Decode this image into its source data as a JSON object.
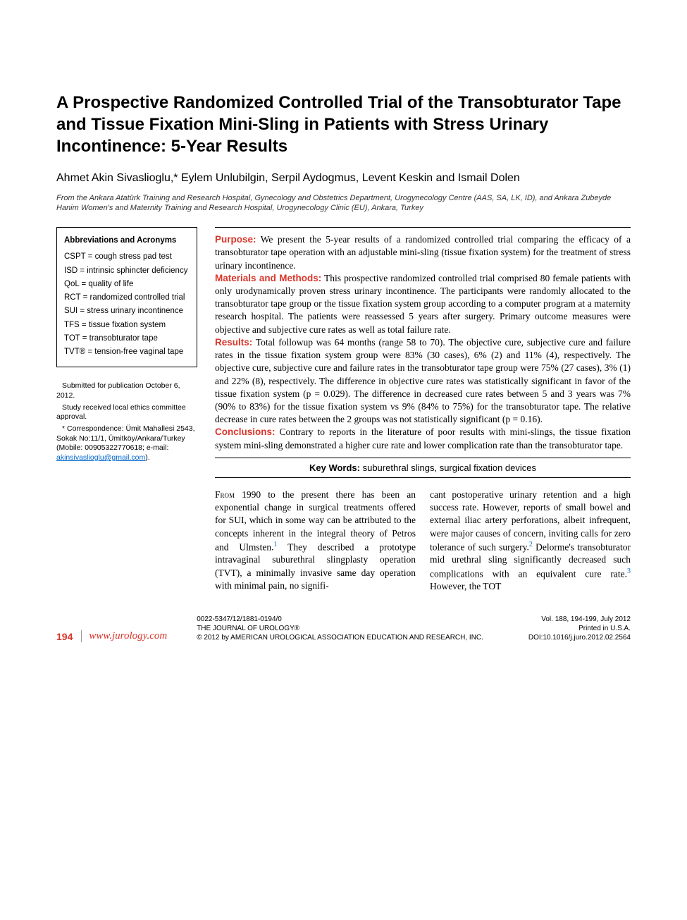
{
  "title": "A Prospective Randomized Controlled Trial of the Transobturator Tape and Tissue Fixation Mini-Sling in Patients with Stress Urinary Incontinence: 5-Year Results",
  "authors": "Ahmet Akin Sivaslioglu,* Eylem Unlubilgin, Serpil Aydogmus, Levent Keskin and Ismail Dolen",
  "affiliation": "From the Ankara Atatürk Training and Research Hospital, Gynecology and Obstetrics Department, Urogynecology Centre (AAS, SA, LK, ID), and Ankara Zubeyde Hanim Women's and Maternity Training and Research Hospital, Urogynecology Clinic (EU), Ankara, Turkey",
  "abbreviations": {
    "heading": "Abbreviations and Acronyms",
    "items": [
      "CSPT = cough stress pad test",
      "ISD = intrinsic sphincter deficiency",
      "QoL = quality of life",
      "RCT = randomized controlled trial",
      "SUI = stress urinary incontinence",
      "TFS = tissue fixation system",
      "TOT = transobturator tape",
      "TVT® = tension-free vaginal tape"
    ]
  },
  "footnotes": {
    "submitted": "Submitted for publication October 6, 2012.",
    "ethics": "Study received local ethics committee approval.",
    "correspondence": "* Correspondence: Ümit Mahallesi 2543, Sokak No:11/1, Ümitköy/Ankara/Turkey (Mobile: 00905322770618; e-mail: ",
    "email": "akinsivaslioglu@gmail.com",
    "close": ")."
  },
  "abstract": {
    "purpose_label": "Purpose:",
    "purpose": " We present the 5-year results of a randomized controlled trial comparing the efficacy of a transobturator tape operation with an adjustable mini-sling (tissue fixation system) for the treatment of stress urinary incontinence.",
    "methods_label": "Materials and Methods:",
    "methods": " This prospective randomized controlled trial comprised 80 female patients with only urodynamically proven stress urinary incontinence. The participants were randomly allocated to the transobturator tape group or the tissue fixation system group according to a computer program at a maternity research hospital. The patients were reassessed 5 years after surgery. Primary outcome measures were objective and subjective cure rates as well as total failure rate.",
    "results_label": "Results:",
    "results": " Total followup was 64 months (range 58 to 70). The objective cure, subjective cure and failure rates in the tissue fixation system group were 83% (30 cases), 6% (2) and 11% (4), respectively. The objective cure, subjective cure and failure rates in the transobturator tape group were 75% (27 cases), 3% (1) and 22% (8), respectively. The difference in objective cure rates was statistically significant in favor of the tissue fixation system (p = 0.029). The difference in decreased cure rates between 5 and 3 years was 7% (90% to 83%) for the tissue fixation system vs 9% (84% to 75%) for the transobturator tape. The relative decrease in cure rates between the 2 groups was not statistically significant (p = 0.16).",
    "conclusions_label": "Conclusions:",
    "conclusions": " Contrary to reports in the literature of poor results with mini-slings, the tissue fixation system mini-sling demonstrated a higher cure rate and lower complication rate than the transobturator tape."
  },
  "keywords": {
    "label": "Key Words:",
    "text": " suburethral slings, surgical fixation devices"
  },
  "body": {
    "col1_lead": "From",
    "col1": " 1990 to the present there has been an exponential change in surgical treatments offered for SUI, which in some way can be attributed to the concepts inherent in the integral theory of Petros and Ulmsten.",
    "col1_after": " They described a prototype intravaginal suburethral slingplasty operation (TVT), a minimally invasive same day operation with minimal pain, no signifi-",
    "col2": "cant postoperative urinary retention and a high success rate. However, reports of small bowel and external iliac artery perforations, albeit infrequent, were major causes of concern, inviting calls for zero tolerance of such surgery.",
    "col2_mid": " Delorme's transobturator mid urethral sling significantly decreased such complications with an equivalent cure rate.",
    "col2_end": " However, the TOT"
  },
  "refs": {
    "r1": "1",
    "r2": "2",
    "r3": "3"
  },
  "footer": {
    "page": "194",
    "url": "www.jurology.com",
    "issn": "0022-5347/12/1881-0194/0",
    "journal": "THE JOURNAL OF UROLOGY®",
    "copyright": "© 2012 by AMERICAN UROLOGICAL ASSOCIATION EDUCATION AND RESEARCH, INC.",
    "vol": "Vol. 188, 194-199, July 2012",
    "printed": "Printed in U.S.A.",
    "doi": "DOI:10.1016/j.juro.2012.02.2564"
  },
  "colors": {
    "accent": "#d9362a",
    "link": "#0066cc",
    "text": "#000000",
    "bg": "#ffffff"
  }
}
